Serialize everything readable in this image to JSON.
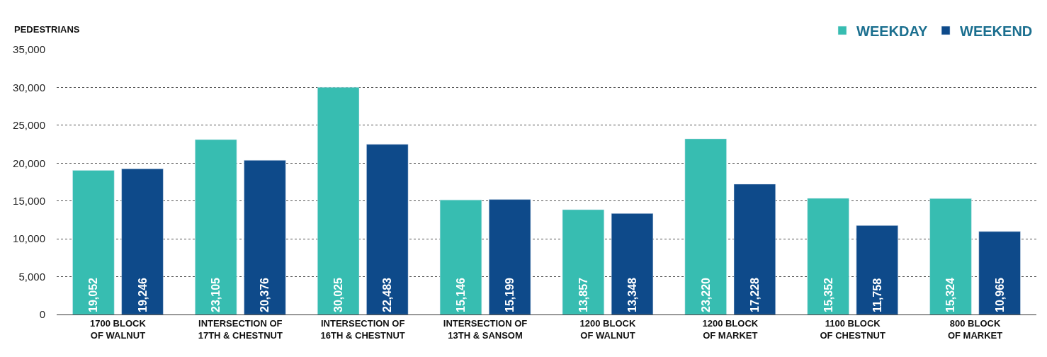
{
  "chart_data": {
    "type": "bar",
    "ylabel": "PEDESTRIANS",
    "categories": [
      "1700 BLOCK\nOF WALNUT",
      "INTERSECTION OF\n17TH & CHESTNUT",
      "INTERSECTION OF\n16TH & CHESTNUT",
      "INTERSECTION OF\n13TH & SANSOM",
      "1200 BLOCK\nOF WALNUT",
      "1200 BLOCK\nOF MARKET",
      "1100 BLOCK\nOF CHESTNUT",
      "800 BLOCK\nOF MARKET"
    ],
    "series": [
      {
        "name": "WEEKDAY",
        "color": "#37bdb1",
        "values": [
          19052,
          23105,
          30025,
          15146,
          13857,
          23220,
          15352,
          15324
        ],
        "value_labels": [
          "19,052",
          "23,105",
          "30,025",
          "15,146",
          "13,857",
          "23,220",
          "15,352",
          "15,324"
        ]
      },
      {
        "name": "WEEKEND",
        "color": "#0e4a8a",
        "values": [
          19246,
          20376,
          22483,
          15199,
          13348,
          17228,
          11758,
          10965
        ],
        "value_labels": [
          "19,246",
          "20,376",
          "22,483",
          "15,199",
          "13,348",
          "17,228",
          "11,758",
          "10,965"
        ]
      }
    ],
    "ylim": [
      0,
      35000
    ],
    "yticks": [
      {
        "value": 0,
        "label": "0"
      },
      {
        "value": 5000,
        "label": "5,000"
      },
      {
        "value": 10000,
        "label": "10,000"
      },
      {
        "value": 15000,
        "label": "15,000"
      },
      {
        "value": 20000,
        "label": "20,000"
      },
      {
        "value": 25000,
        "label": "25,000"
      },
      {
        "value": 30000,
        "label": "30,000"
      },
      {
        "value": 35000,
        "label": "35,000"
      }
    ],
    "grid": "y",
    "legend": "top right"
  }
}
